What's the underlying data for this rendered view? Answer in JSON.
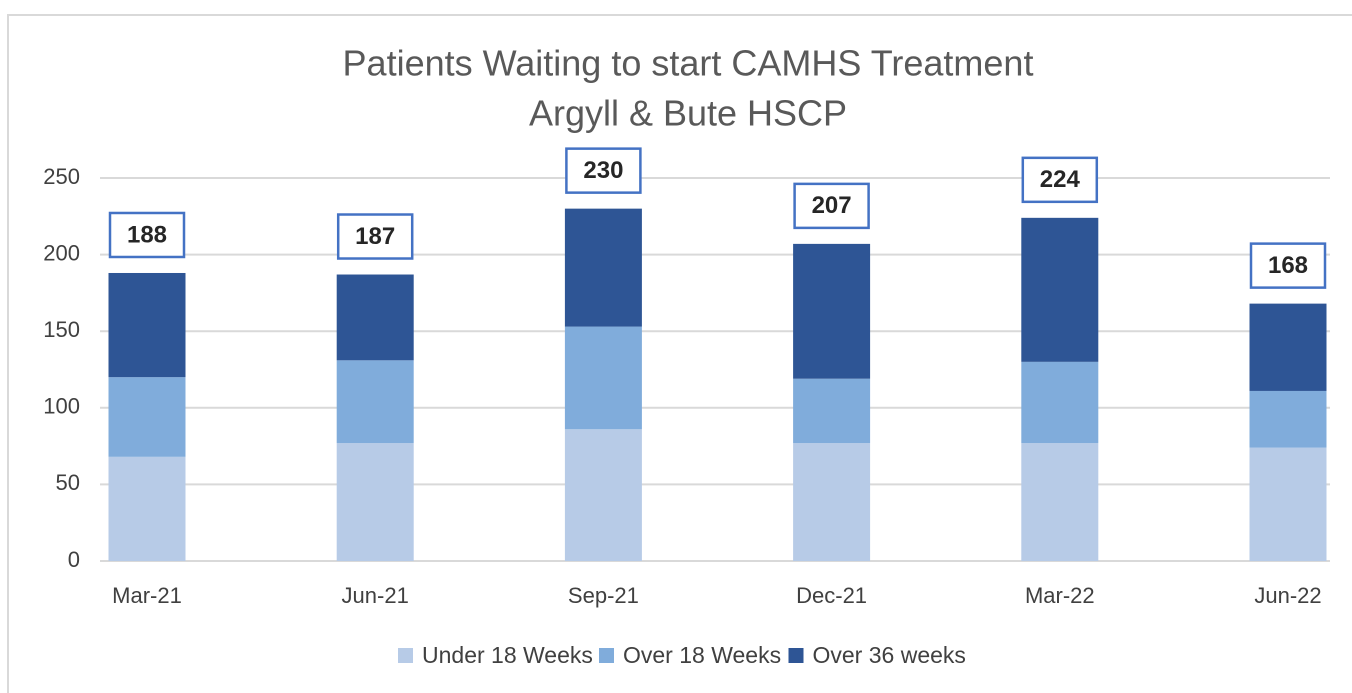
{
  "chart_data": {
    "type": "stacked_bar",
    "title": "Patients Waiting to start CAMHS Treatment",
    "subtitle": "Argyll & Bute HSCP",
    "categories": [
      "Mar-21",
      "Jun-21",
      "Sep-21",
      "Dec-21",
      "Mar-22",
      "Jun-22"
    ],
    "series": [
      {
        "name": "Under 18 Weeks",
        "color": "#b7cbe7",
        "values": [
          68,
          77,
          86,
          77,
          77,
          74
        ]
      },
      {
        "name": "Over 18 Weeks",
        "color": "#80acdb",
        "values": [
          52,
          54,
          67,
          42,
          53,
          37
        ]
      },
      {
        "name": "Over 36 weeks",
        "color": "#2e5595",
        "values": [
          68,
          56,
          77,
          88,
          94,
          57
        ]
      }
    ],
    "totals": [
      188,
      187,
      230,
      207,
      224,
      168
    ],
    "ylim": [
      0,
      250
    ],
    "yticks": [
      0,
      50,
      100,
      150,
      200,
      250
    ],
    "grid": true,
    "legend": "bottom"
  }
}
